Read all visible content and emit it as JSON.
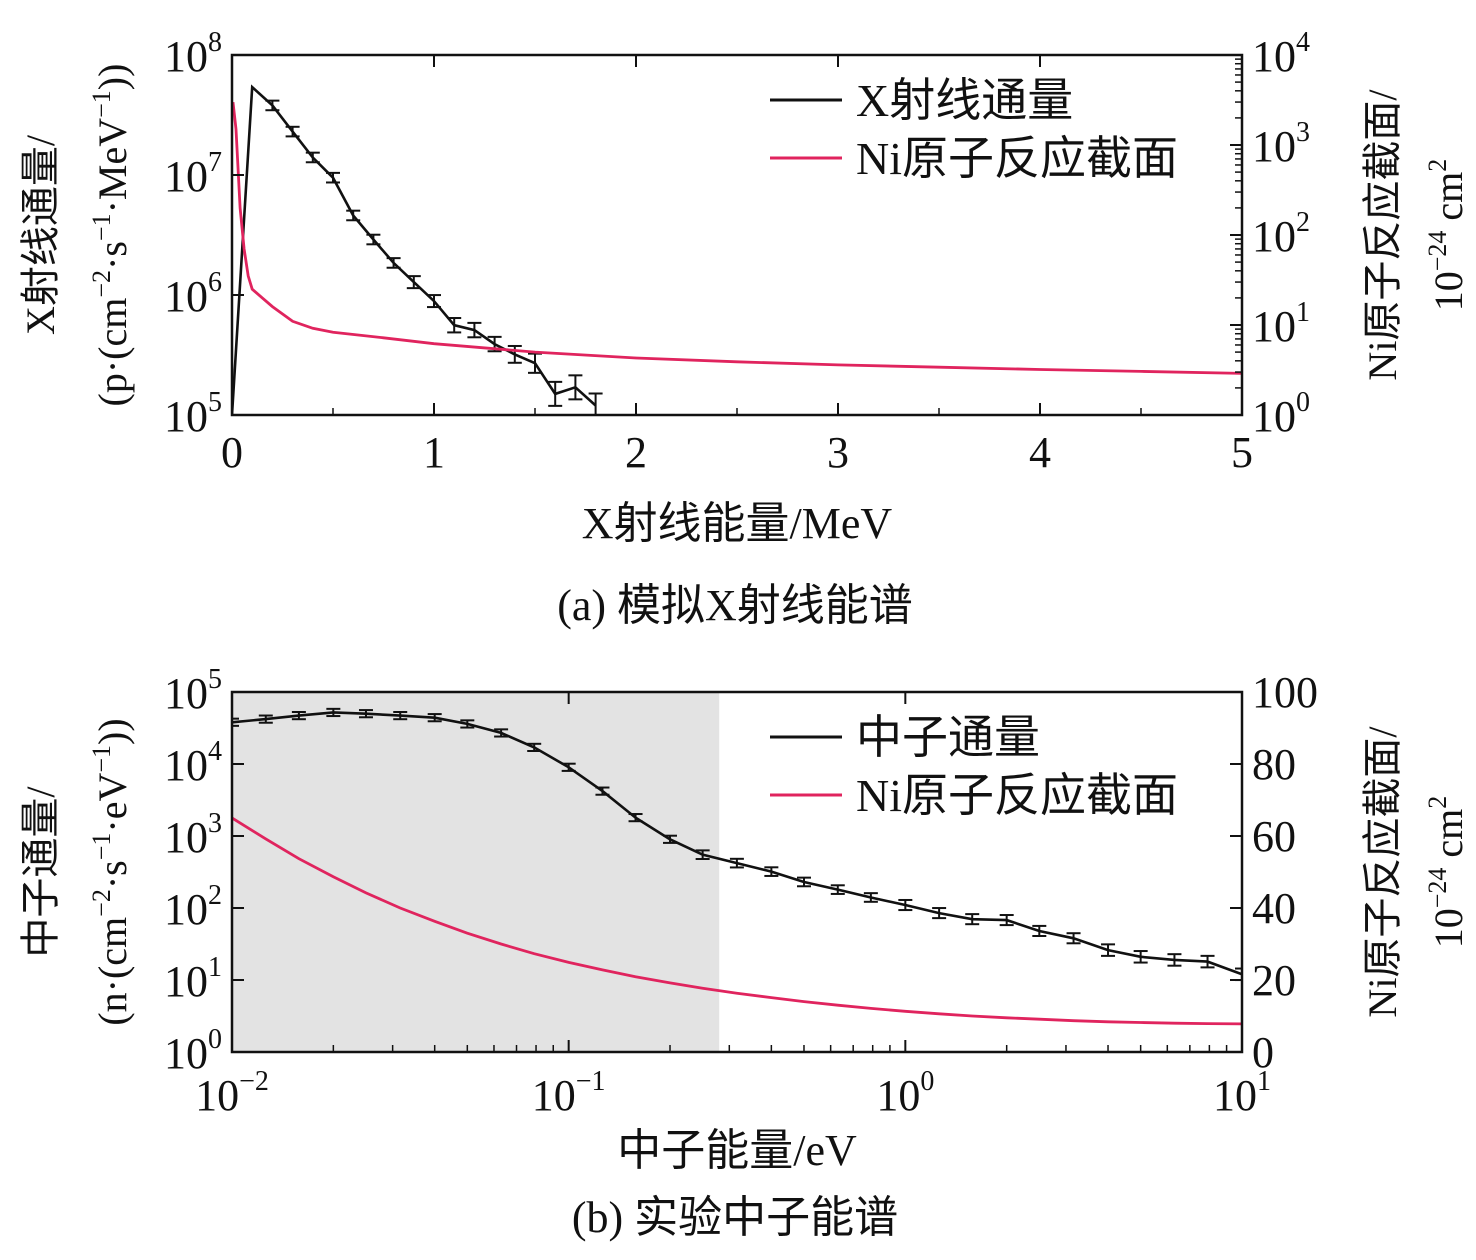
{
  "colors": {
    "flux": "#111111",
    "cross_section": "#e0245e",
    "shade": "#e3e3e3"
  },
  "chart_data": [
    {
      "type": "line",
      "caption": "(a) 模拟X射线能谱",
      "xlabel": "X射线能量/MeV",
      "ylabel_left": {
        "line1_pre": "X射线通量/",
        "line2_pre": "(p·(cm",
        "exp1": "−2",
        "mid1": "·s",
        "exp2": "−1",
        "mid2": "·MeV",
        "exp3": "−1",
        "post": "))"
      },
      "ylabel_right": {
        "line1": "Ni原子反应截面/",
        "line2_pre": "10",
        "exp1": "−24",
        "line2_post": " cm",
        "exp2": "2"
      },
      "x_scale": "linear",
      "xlim": [
        0,
        5
      ],
      "x_ticks": [
        {
          "v": 0,
          "label": "0"
        },
        {
          "v": 1,
          "label": "1"
        },
        {
          "v": 2,
          "label": "2"
        },
        {
          "v": 3,
          "label": "3"
        },
        {
          "v": 4,
          "label": "4"
        },
        {
          "v": 5,
          "label": "5"
        }
      ],
      "y_left_scale": "log",
      "y_left_lim": [
        100000,
        100000000
      ],
      "y_left_ticks": [
        {
          "v": 100000,
          "base": "10",
          "exp": "5"
        },
        {
          "v": 1000000,
          "base": "10",
          "exp": "6"
        },
        {
          "v": 10000000,
          "base": "10",
          "exp": "7"
        },
        {
          "v": 100000000,
          "base": "10",
          "exp": "8"
        }
      ],
      "y_right_scale": "log",
      "y_right_lim": [
        1,
        10000
      ],
      "y_right_ticks": [
        {
          "v": 1,
          "base": "10",
          "exp": "0"
        },
        {
          "v": 10,
          "base": "10",
          "exp": "1"
        },
        {
          "v": 100,
          "base": "10",
          "exp": "2"
        },
        {
          "v": 1000,
          "base": "10",
          "exp": "3"
        },
        {
          "v": 10000,
          "base": "10",
          "exp": "4"
        }
      ],
      "legend": {
        "position": "top-right"
      },
      "series": [
        {
          "name": "X射线通量",
          "axis": "left",
          "color": "#111111",
          "error_bars": true,
          "x": [
            0.0,
            0.1,
            0.2,
            0.3,
            0.4,
            0.5,
            0.6,
            0.7,
            0.8,
            0.9,
            1.0,
            1.1,
            1.2,
            1.3,
            1.4,
            1.5,
            1.6,
            1.7,
            1.8
          ],
          "y": [
            100000,
            54000000,
            38000000,
            23000000,
            14000000,
            9500000,
            4600000,
            2900000,
            1850000,
            1280000,
            890000,
            560000,
            510000,
            390000,
            320000,
            270000,
            150000,
            170000,
            120000
          ],
          "err": [
            0,
            0,
            0.04,
            0.04,
            0.04,
            0.04,
            0.04,
            0.04,
            0.04,
            0.05,
            0.05,
            0.06,
            0.06,
            0.06,
            0.07,
            0.08,
            0.1,
            0.1,
            0.1
          ]
        },
        {
          "name": "Ni原子反应截面",
          "axis": "right",
          "color": "#e0245e",
          "error_bars": false,
          "x": [
            0.005,
            0.02,
            0.04,
            0.06,
            0.08,
            0.1,
            0.15,
            0.2,
            0.3,
            0.4,
            0.5,
            0.75,
            1.0,
            1.5,
            2.0,
            2.5,
            3.0,
            3.5,
            4.0,
            4.5,
            5.0
          ],
          "y": [
            3000,
            1500,
            200,
            70,
            35,
            25,
            20,
            16,
            11,
            9.2,
            8.3,
            7.2,
            6.2,
            5.0,
            4.3,
            3.9,
            3.6,
            3.4,
            3.2,
            3.05,
            2.9
          ]
        }
      ]
    },
    {
      "type": "line",
      "caption": "(b) 实验中子能谱",
      "xlabel": "中子能量/eV",
      "ylabel_left": {
        "line1_pre": "中子通量/",
        "line2_pre": "(n·(cm",
        "exp1": "−2",
        "mid1": "·s",
        "exp2": "−1",
        "mid2": "·eV",
        "exp3": "−1",
        "post": "))"
      },
      "ylabel_right": {
        "line1": "Ni原子反应截面/",
        "line2_pre": "10",
        "exp1": "−24",
        "line2_post": " cm",
        "exp2": "2"
      },
      "x_scale": "log",
      "xlim": [
        0.01,
        10
      ],
      "x_ticks": [
        {
          "v": 0.01,
          "base": "10",
          "exp": "−2"
        },
        {
          "v": 0.1,
          "base": "10",
          "exp": "−1"
        },
        {
          "v": 1,
          "base": "10",
          "exp": "0"
        },
        {
          "v": 10,
          "base": "10",
          "exp": "1"
        }
      ],
      "y_left_scale": "log",
      "y_left_lim": [
        1,
        100000
      ],
      "y_left_ticks": [
        {
          "v": 1,
          "base": "10",
          "exp": "0"
        },
        {
          "v": 10,
          "base": "10",
          "exp": "1"
        },
        {
          "v": 100,
          "base": "10",
          "exp": "2"
        },
        {
          "v": 1000,
          "base": "10",
          "exp": "3"
        },
        {
          "v": 10000,
          "base": "10",
          "exp": "4"
        },
        {
          "v": 100000,
          "base": "10",
          "exp": "5"
        }
      ],
      "y_right_scale": "linear",
      "y_right_lim": [
        0,
        100
      ],
      "y_right_ticks": [
        {
          "v": 0,
          "label": "0"
        },
        {
          "v": 20,
          "label": "20"
        },
        {
          "v": 40,
          "label": "40"
        },
        {
          "v": 60,
          "label": "60"
        },
        {
          "v": 80,
          "label": "80"
        },
        {
          "v": 100,
          "label": "100"
        }
      ],
      "shaded_region_x": [
        0.01,
        0.28
      ],
      "legend": {
        "position": "top-right"
      },
      "series": [
        {
          "name": "中子通量",
          "axis": "left",
          "color": "#111111",
          "error_bars": true,
          "x": [
            0.01,
            0.0126,
            0.0158,
            0.02,
            0.025,
            0.0316,
            0.04,
            0.05,
            0.063,
            0.079,
            0.1,
            0.126,
            0.158,
            0.2,
            0.25,
            0.316,
            0.4,
            0.5,
            0.63,
            0.79,
            1.0,
            1.26,
            1.58,
            2.0,
            2.5,
            3.16,
            4.0,
            5.0,
            6.3,
            7.9,
            10.0
          ],
          "y": [
            38000,
            42000,
            47000,
            52000,
            50000,
            47000,
            44000,
            36000,
            27000,
            17000,
            9000,
            4200,
            1800,
            900,
            550,
            420,
            320,
            230,
            180,
            140,
            110,
            85,
            70,
            68,
            48,
            38,
            26,
            21,
            19,
            18,
            12
          ],
          "err": [
            0.05,
            0.05,
            0.05,
            0.05,
            0.05,
            0.05,
            0.05,
            0.05,
            0.05,
            0.05,
            0.05,
            0.05,
            0.05,
            0.05,
            0.06,
            0.06,
            0.06,
            0.06,
            0.06,
            0.06,
            0.07,
            0.07,
            0.07,
            0.07,
            0.07,
            0.07,
            0.08,
            0.08,
            0.08,
            0.08,
            0.08
          ]
        },
        {
          "name": "Ni原子反应截面",
          "axis": "right",
          "color": "#e0245e",
          "error_bars": false,
          "x": [
            0.01,
            0.0126,
            0.0158,
            0.02,
            0.025,
            0.0316,
            0.04,
            0.05,
            0.063,
            0.079,
            0.1,
            0.126,
            0.158,
            0.2,
            0.25,
            0.316,
            0.4,
            0.5,
            0.63,
            0.79,
            1.0,
            1.26,
            1.58,
            2.0,
            2.5,
            3.16,
            4.0,
            5.0,
            6.3,
            7.9,
            10.0
          ],
          "y": [
            65,
            59.2,
            53.7,
            48.7,
            44.2,
            40,
            36.3,
            33,
            30,
            27.3,
            24.9,
            22.8,
            20.9,
            19.2,
            17.7,
            16.3,
            15.1,
            14,
            13,
            12.1,
            11.3,
            10.6,
            10,
            9.5,
            9.1,
            8.7,
            8.4,
            8.2,
            8,
            7.9,
            7.8
          ]
        }
      ]
    }
  ]
}
